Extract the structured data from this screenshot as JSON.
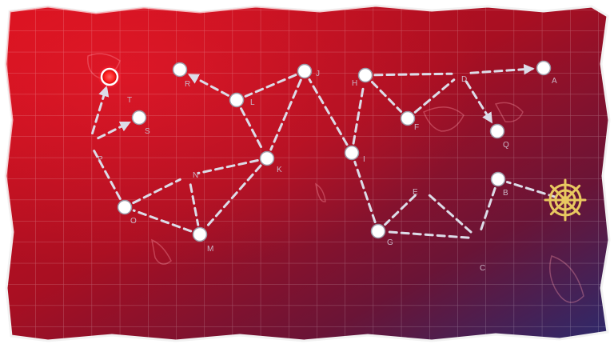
{
  "map": {
    "nodes": [
      {
        "id": "start",
        "label": "",
        "type": "start"
      },
      {
        "id": "A",
        "label": "A",
        "type": "node"
      },
      {
        "id": "B",
        "label": "B",
        "type": "node"
      },
      {
        "id": "C",
        "label": "C",
        "type": "waypoint"
      },
      {
        "id": "D",
        "label": "D",
        "type": "waypoint"
      },
      {
        "id": "E",
        "label": "E",
        "type": "waypoint"
      },
      {
        "id": "F",
        "label": "F",
        "type": "node"
      },
      {
        "id": "G",
        "label": "G",
        "type": "node"
      },
      {
        "id": "H",
        "label": "H",
        "type": "node"
      },
      {
        "id": "I",
        "label": "I",
        "type": "node"
      },
      {
        "id": "J",
        "label": "J",
        "type": "node"
      },
      {
        "id": "K",
        "label": "K",
        "type": "node"
      },
      {
        "id": "L",
        "label": "L",
        "type": "node"
      },
      {
        "id": "M",
        "label": "M",
        "type": "node"
      },
      {
        "id": "N",
        "label": "N",
        "type": "waypoint"
      },
      {
        "id": "O",
        "label": "O",
        "type": "node"
      },
      {
        "id": "P",
        "label": "P",
        "type": "waypoint"
      },
      {
        "id": "Q",
        "label": "Q",
        "type": "node"
      },
      {
        "id": "R",
        "label": "R",
        "type": "node"
      },
      {
        "id": "S",
        "label": "S",
        "type": "node"
      },
      {
        "id": "T",
        "label": "T",
        "type": "boss"
      }
    ],
    "routes": [
      {
        "from": "start",
        "to": "B",
        "arrow": false
      },
      {
        "from": "B",
        "to": "C",
        "arrow": false
      },
      {
        "from": "C",
        "to": "E",
        "arrow": false
      },
      {
        "from": "E",
        "to": "G",
        "arrow": false
      },
      {
        "from": "C",
        "to": "G",
        "arrow": false
      },
      {
        "from": "G",
        "to": "I",
        "arrow": false
      },
      {
        "from": "I",
        "to": "J",
        "arrow": false
      },
      {
        "from": "I",
        "to": "H",
        "arrow": false
      },
      {
        "from": "H",
        "to": "F",
        "arrow": false
      },
      {
        "from": "F",
        "to": "D",
        "arrow": false
      },
      {
        "from": "H",
        "to": "D",
        "arrow": false
      },
      {
        "from": "D",
        "to": "A",
        "arrow": true
      },
      {
        "from": "D",
        "to": "Q",
        "arrow": true
      },
      {
        "from": "J",
        "to": "L",
        "arrow": false
      },
      {
        "from": "J",
        "to": "K",
        "arrow": false
      },
      {
        "from": "L",
        "to": "R",
        "arrow": true
      },
      {
        "from": "L",
        "to": "K",
        "arrow": false
      },
      {
        "from": "K",
        "to": "N",
        "arrow": false
      },
      {
        "from": "K",
        "to": "M",
        "arrow": false
      },
      {
        "from": "N",
        "to": "M",
        "arrow": false
      },
      {
        "from": "M",
        "to": "O",
        "arrow": false
      },
      {
        "from": "O",
        "to": "N",
        "arrow": false
      },
      {
        "from": "O",
        "to": "P",
        "arrow": false
      },
      {
        "from": "P",
        "to": "S",
        "arrow": true
      },
      {
        "from": "P",
        "to": "T",
        "arrow": true
      }
    ]
  },
  "colors": {
    "sea_red": "#c8101c",
    "sea_dark": "#5a1030",
    "sea_purple": "#3a2a6a",
    "route": "#dcdce8",
    "node_fill": "#ffffff",
    "boss": "#ff3030",
    "start_gold": "#e8c860"
  },
  "icons": {
    "start": "ship-wheel-icon",
    "boss": "boss-node-icon"
  }
}
